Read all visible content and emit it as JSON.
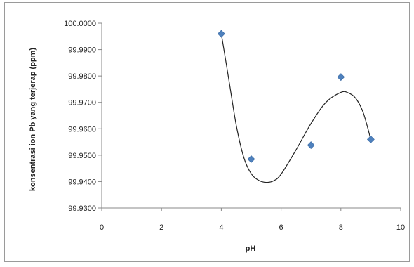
{
  "chart_data": {
    "type": "scatter",
    "title": "",
    "xlabel": "pH",
    "ylabel": "konsentrasi ion Pb yang terjerap (ppm)",
    "xlim": [
      0,
      10
    ],
    "ylim": [
      99.93,
      100.0
    ],
    "x_ticks": [
      0,
      2,
      4,
      6,
      8,
      10
    ],
    "y_ticks": [
      "99.9300",
      "99.9400",
      "99.9500",
      "99.9600",
      "99.9700",
      "99.9800",
      "99.9900",
      "100.0000"
    ],
    "grid": false,
    "legend": "none",
    "series": [
      {
        "marker": "diamond",
        "color": "#4f81bd",
        "points": [
          {
            "x": 4,
            "y": 99.996
          },
          {
            "x": 5,
            "y": 99.9485
          },
          {
            "x": 7,
            "y": 99.9538
          },
          {
            "x": 8,
            "y": 99.9796
          },
          {
            "x": 9,
            "y": 99.956
          }
        ]
      }
    ],
    "trendline": {
      "type": "polynomial",
      "color": "#222222",
      "x": [
        4.0,
        4.25,
        4.5,
        4.75,
        5.0,
        5.25,
        5.5,
        5.75,
        6.0,
        6.5,
        7.0,
        7.5,
        8.0,
        8.25,
        8.5,
        8.75,
        9.0
      ],
      "y": [
        99.996,
        99.9788,
        99.9613,
        99.9492,
        99.943,
        99.9405,
        99.9397,
        99.9403,
        99.9428,
        99.952,
        99.962,
        99.97,
        99.9738,
        99.9736,
        99.9715,
        99.966,
        99.956
      ]
    }
  }
}
